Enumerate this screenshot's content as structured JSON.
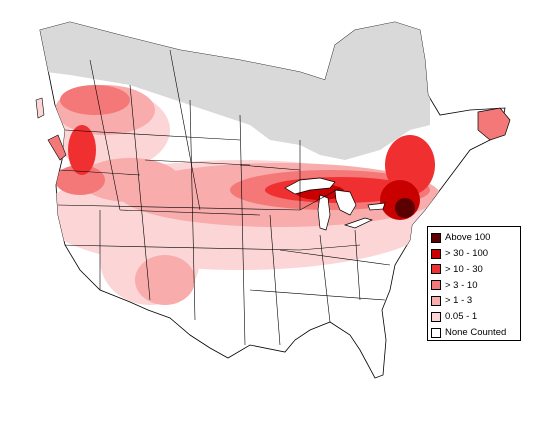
{
  "legend": {
    "items": [
      {
        "label": "Above 100",
        "color": "#5a0000"
      },
      {
        "label": "> 30 - 100",
        "color": "#c80000"
      },
      {
        "label": "> 10 - 30",
        "color": "#f03030"
      },
      {
        "label": "> 3 - 10",
        "color": "#f47878"
      },
      {
        "label": "> 1 - 3",
        "color": "#f8acac"
      },
      {
        "label": "0.05 - 1",
        "color": "#fcd6d6"
      },
      {
        "label": "None Counted",
        "color": "#ffffff"
      }
    ]
  },
  "colors": {
    "not_surveyed": "#d9d9d9",
    "boundary": "#000000",
    "water": "#ffffff"
  }
}
